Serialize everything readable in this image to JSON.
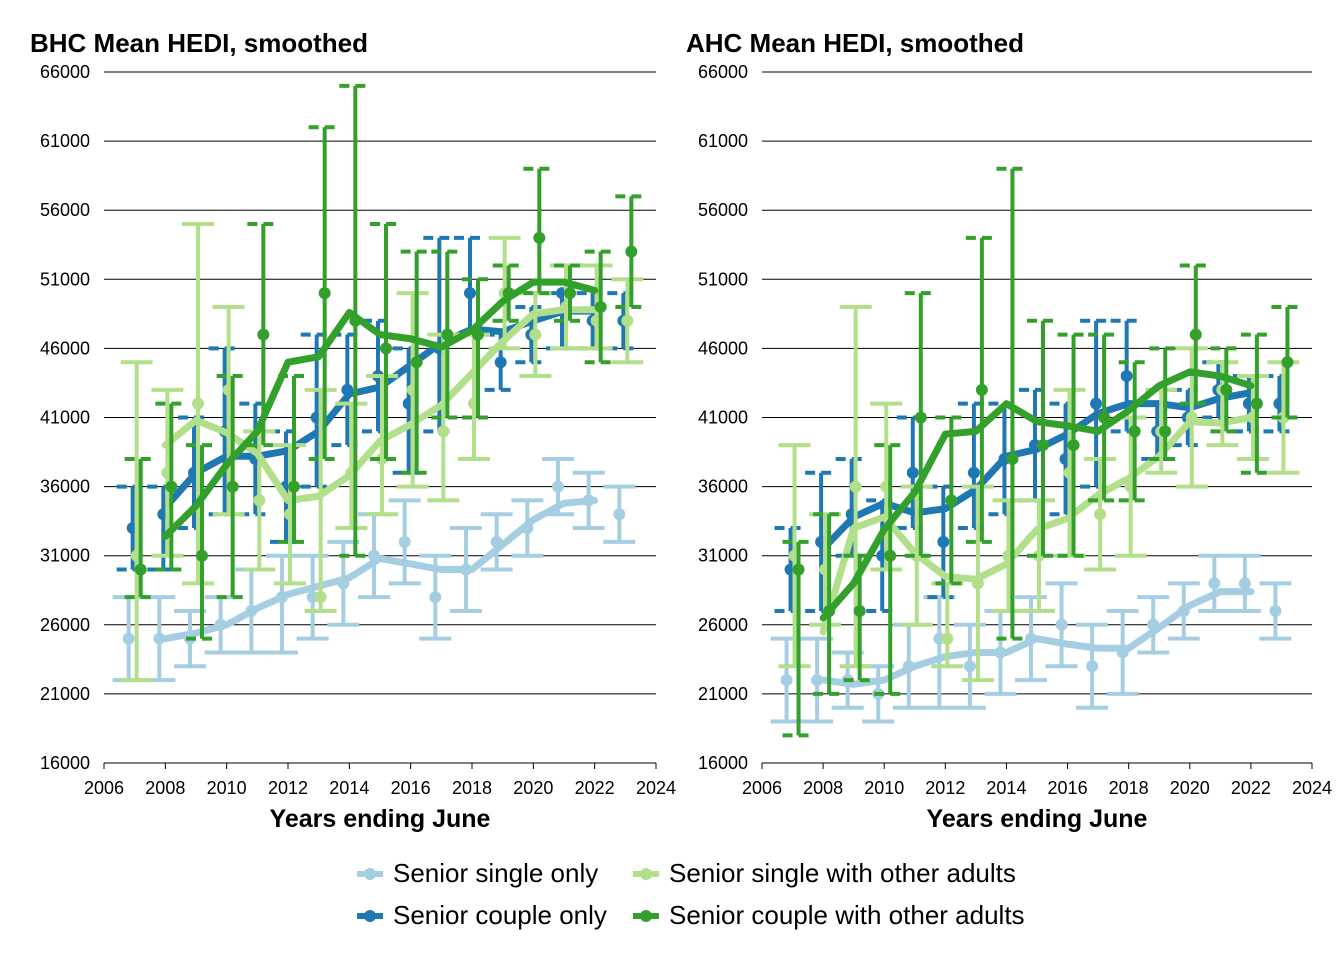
{
  "colors": {
    "senior_single_only": "#a6cee3",
    "senior_couple_only": "#1f78b4",
    "senior_single_with_other_adults": "#b2df8a",
    "senior_couple_with_other_adults": "#33a02c"
  },
  "legend": [
    {
      "key": "senior_single_only",
      "label": "Senior single only"
    },
    {
      "key": "senior_single_with_other_adults",
      "label": "Senior single with other adults"
    },
    {
      "key": "senior_couple_only",
      "label": "Senior couple only"
    },
    {
      "key": "senior_couple_with_other_adults",
      "label": "Senior couple with other adults"
    }
  ],
  "chart_data": [
    {
      "type": "line",
      "title": "BHC Mean HEDI, smoothed",
      "xlabel": "Years ending June",
      "ylabel": "",
      "xlim": [
        2006,
        2024
      ],
      "ylim": [
        16000,
        66000
      ],
      "xticks": [
        2006,
        2008,
        2010,
        2012,
        2014,
        2016,
        2018,
        2020,
        2022,
        2024
      ],
      "yticks": [
        16000,
        21000,
        26000,
        31000,
        36000,
        41000,
        46000,
        51000,
        56000,
        61000,
        66000
      ],
      "grid": "horizontal",
      "series": [
        {
          "key": "senior_single_only",
          "x": [
            2007,
            2008,
            2009,
            2010,
            2011,
            2012,
            2013,
            2014,
            2015,
            2016,
            2017,
            2018,
            2019,
            2020,
            2021,
            2022,
            2023
          ],
          "points": [
            25000,
            25000,
            25000,
            26000,
            27000,
            28000,
            28000,
            29000,
            31000,
            32000,
            28000,
            30000,
            32000,
            33000,
            36000,
            35000,
            34000
          ],
          "lower": [
            22000,
            22000,
            23000,
            24000,
            24000,
            24000,
            25000,
            26000,
            28000,
            29000,
            25000,
            27000,
            30000,
            31000,
            34000,
            33000,
            32000
          ],
          "upper": [
            28000,
            28000,
            27000,
            28000,
            30000,
            31000,
            31000,
            32000,
            34000,
            35000,
            31000,
            33000,
            34000,
            35000,
            38000,
            37000,
            36000
          ],
          "smooth_x": [
            2008,
            2009,
            2010,
            2011,
            2012,
            2013,
            2014,
            2015,
            2016,
            2017,
            2018,
            2019,
            2020,
            2021,
            2022
          ],
          "smooth": [
            25000,
            25400,
            26000,
            27200,
            28200,
            28800,
            29400,
            30800,
            30400,
            30000,
            30000,
            31800,
            33600,
            34800,
            35000
          ]
        },
        {
          "key": "senior_couple_only",
          "x": [
            2007,
            2008,
            2009,
            2010,
            2011,
            2012,
            2013,
            2014,
            2015,
            2016,
            2017,
            2018,
            2019,
            2020,
            2021,
            2022,
            2023
          ],
          "points": [
            33000,
            34000,
            37000,
            40000,
            38000,
            36000,
            41000,
            43000,
            44000,
            42000,
            46000,
            50000,
            45000,
            47000,
            50000,
            48000,
            48000
          ],
          "lower": [
            30000,
            30000,
            33000,
            34000,
            34000,
            32000,
            36000,
            39000,
            40000,
            37000,
            40000,
            47000,
            43000,
            45000,
            46000,
            46000,
            46000
          ],
          "upper": [
            36000,
            36000,
            41000,
            46000,
            42000,
            40000,
            47000,
            47000,
            48000,
            46000,
            54000,
            54000,
            47000,
            49000,
            50000,
            50000,
            50000
          ],
          "smooth_x": [
            2008,
            2009,
            2010,
            2011,
            2012,
            2013,
            2014,
            2015,
            2016,
            2017,
            2018,
            2019,
            2020,
            2021,
            2022
          ],
          "smooth": [
            34500,
            37000,
            38200,
            38200,
            38600,
            40000,
            42700,
            43200,
            44800,
            46400,
            47400,
            47200,
            48000,
            48700,
            48700
          ]
        },
        {
          "key": "senior_single_with_other_adults",
          "x": [
            2007,
            2008,
            2009,
            2010,
            2011,
            2012,
            2013,
            2014,
            2015,
            2016,
            2017,
            2018,
            2019,
            2020,
            2021,
            2022,
            2023
          ],
          "points": [
            31000,
            37000,
            42000,
            43000,
            35000,
            34000,
            28000,
            37000,
            38000,
            43000,
            40000,
            42000,
            50000,
            47000,
            49000,
            48000,
            48000
          ],
          "lower": [
            22000,
            31000,
            29000,
            34000,
            30000,
            29000,
            27000,
            33000,
            34000,
            36000,
            35000,
            38000,
            46000,
            44000,
            46000,
            46000,
            45000
          ],
          "upper": [
            45000,
            43000,
            55000,
            49000,
            40000,
            39000,
            43000,
            42000,
            44000,
            50000,
            47000,
            47000,
            54000,
            50000,
            52000,
            52000,
            51000
          ],
          "smooth_x": [
            2008,
            2009,
            2010,
            2011,
            2012,
            2013,
            2014,
            2015,
            2016,
            2017,
            2018,
            2019,
            2020,
            2021,
            2022
          ],
          "smooth": [
            39000,
            40800,
            39900,
            38400,
            35000,
            35300,
            36800,
            39300,
            40500,
            41900,
            44200,
            46500,
            48500,
            48800,
            48800
          ]
        },
        {
          "key": "senior_couple_with_other_adults",
          "x": [
            2007,
            2008,
            2009,
            2010,
            2011,
            2012,
            2013,
            2014,
            2015,
            2016,
            2017,
            2018,
            2019,
            2020,
            2021,
            2022,
            2023
          ],
          "points": [
            30000,
            36000,
            31000,
            36000,
            47000,
            36000,
            50000,
            48000,
            46000,
            45000,
            47000,
            47000,
            50000,
            54000,
            50000,
            49000,
            53000
          ],
          "lower": [
            28000,
            30000,
            25000,
            28000,
            39000,
            32000,
            38000,
            31000,
            38000,
            37000,
            41000,
            41000,
            48000,
            50000,
            48000,
            45000,
            49000
          ],
          "upper": [
            38000,
            42000,
            39000,
            44000,
            55000,
            44000,
            62000,
            65000,
            55000,
            53000,
            53000,
            51000,
            52000,
            59000,
            52000,
            53000,
            57000
          ],
          "smooth_x": [
            2008,
            2009,
            2010,
            2011,
            2012,
            2013,
            2014,
            2015,
            2016,
            2017,
            2018,
            2019,
            2020,
            2021,
            2022
          ],
          "smooth": [
            32400,
            34600,
            37600,
            40000,
            45000,
            45400,
            48600,
            47000,
            46700,
            46100,
            47300,
            49400,
            50800,
            50800,
            50200
          ]
        }
      ]
    },
    {
      "type": "line",
      "title": "AHC Mean HEDI, smoothed",
      "xlabel": "Years ending June",
      "ylabel": "",
      "xlim": [
        2006,
        2024
      ],
      "ylim": [
        16000,
        66000
      ],
      "xticks": [
        2006,
        2008,
        2010,
        2012,
        2014,
        2016,
        2018,
        2020,
        2022,
        2024
      ],
      "yticks": [
        16000,
        21000,
        26000,
        31000,
        36000,
        41000,
        46000,
        51000,
        56000,
        61000,
        66000
      ],
      "grid": "horizontal",
      "series": [
        {
          "key": "senior_single_only",
          "x": [
            2007,
            2008,
            2009,
            2010,
            2011,
            2012,
            2013,
            2014,
            2015,
            2016,
            2017,
            2018,
            2019,
            2020,
            2021,
            2022,
            2023
          ],
          "points": [
            22000,
            22000,
            22000,
            21000,
            23000,
            25000,
            23000,
            24000,
            25000,
            26000,
            23000,
            24000,
            26000,
            27000,
            29000,
            29000,
            27000
          ],
          "lower": [
            19000,
            19000,
            20000,
            19000,
            20000,
            20000,
            20000,
            21000,
            22000,
            23000,
            20000,
            21000,
            24000,
            25000,
            27000,
            27000,
            25000
          ],
          "upper": [
            25000,
            25000,
            24000,
            23000,
            26000,
            28000,
            26000,
            27000,
            28000,
            29000,
            26000,
            27000,
            28000,
            29000,
            31000,
            31000,
            29000
          ],
          "smooth_x": [
            2008,
            2009,
            2010,
            2011,
            2012,
            2013,
            2014,
            2015,
            2016,
            2017,
            2018,
            2019,
            2020,
            2021,
            2022
          ],
          "smooth": [
            22000,
            21700,
            22000,
            23000,
            23700,
            24000,
            24000,
            25000,
            24600,
            24300,
            24300,
            25800,
            27400,
            28400,
            28400
          ]
        },
        {
          "key": "senior_couple_only",
          "x": [
            2007,
            2008,
            2009,
            2010,
            2011,
            2012,
            2013,
            2014,
            2015,
            2016,
            2017,
            2018,
            2019,
            2020,
            2021,
            2022,
            2023
          ],
          "points": [
            30000,
            32000,
            34000,
            31000,
            37000,
            32000,
            37000,
            38000,
            39000,
            38000,
            42000,
            44000,
            40000,
            41000,
            43000,
            42000,
            42000
          ],
          "lower": [
            27000,
            27000,
            31000,
            27000,
            33000,
            28000,
            33000,
            34000,
            35000,
            34000,
            36000,
            40000,
            38000,
            39000,
            41000,
            40000,
            40000
          ],
          "upper": [
            33000,
            37000,
            38000,
            35000,
            41000,
            36000,
            42000,
            42000,
            43000,
            42000,
            48000,
            48000,
            42000,
            43000,
            45000,
            44000,
            44000
          ],
          "smooth_x": [
            2008,
            2009,
            2010,
            2011,
            2012,
            2013,
            2014,
            2015,
            2016,
            2017,
            2018,
            2019,
            2020,
            2021,
            2022
          ],
          "smooth": [
            31500,
            33800,
            34800,
            34100,
            34400,
            35800,
            38200,
            38700,
            39800,
            41300,
            42000,
            42000,
            41700,
            42400,
            42800
          ]
        },
        {
          "key": "senior_single_with_other_adults",
          "x": [
            2007,
            2008,
            2009,
            2010,
            2011,
            2012,
            2013,
            2014,
            2015,
            2016,
            2017,
            2018,
            2019,
            2020,
            2021,
            2022,
            2023
          ],
          "points": [
            31000,
            30000,
            36000,
            36000,
            31000,
            25000,
            29000,
            31000,
            31000,
            37000,
            34000,
            36000,
            40000,
            41000,
            43000,
            41000,
            41000
          ],
          "lower": [
            23000,
            26000,
            23000,
            30000,
            26000,
            23000,
            22000,
            27000,
            27000,
            31000,
            30000,
            31000,
            37000,
            36000,
            39000,
            38000,
            37000
          ],
          "upper": [
            39000,
            34000,
            49000,
            42000,
            36000,
            29000,
            36000,
            35000,
            35000,
            43000,
            38000,
            41000,
            43000,
            46000,
            45000,
            44000,
            45000
          ],
          "smooth_x": [
            2008,
            2009,
            2010,
            2011,
            2012,
            2013,
            2014,
            2015,
            2016,
            2017,
            2018,
            2019,
            2020,
            2021,
            2022
          ],
          "smooth": [
            25500,
            33000,
            33800,
            31200,
            29500,
            29300,
            30400,
            32900,
            33700,
            35400,
            36600,
            38200,
            40700,
            40600,
            41000
          ]
        },
        {
          "key": "senior_couple_with_other_adults",
          "x": [
            2007,
            2008,
            2009,
            2010,
            2011,
            2012,
            2013,
            2014,
            2015,
            2016,
            2017,
            2018,
            2019,
            2020,
            2021,
            2022,
            2023
          ],
          "points": [
            30000,
            27000,
            27000,
            31000,
            41000,
            35000,
            43000,
            38000,
            39000,
            39000,
            41000,
            40000,
            40000,
            47000,
            43000,
            42000,
            45000
          ],
          "lower": [
            18000,
            21000,
            22000,
            21000,
            31000,
            29000,
            32000,
            25000,
            31000,
            31000,
            35000,
            35000,
            38000,
            42000,
            40000,
            37000,
            41000
          ],
          "upper": [
            32000,
            34000,
            31000,
            39000,
            50000,
            41000,
            54000,
            59000,
            48000,
            47000,
            47000,
            45000,
            46000,
            52000,
            46000,
            47000,
            49000
          ],
          "smooth_x": [
            2008,
            2009,
            2010,
            2011,
            2012,
            2013,
            2014,
            2015,
            2016,
            2017,
            2018,
            2019,
            2020,
            2021,
            2022
          ],
          "smooth": [
            26500,
            29000,
            32900,
            35600,
            39800,
            40000,
            42000,
            40700,
            40400,
            40000,
            41500,
            43300,
            44300,
            44000,
            43300
          ]
        }
      ]
    }
  ]
}
